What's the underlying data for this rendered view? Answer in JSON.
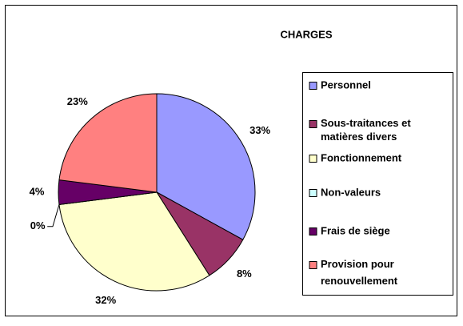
{
  "chart_data": {
    "type": "pie",
    "title": "CHARGES",
    "categories": [
      "Personnel",
      "Sous-traitances et matières divers",
      "Fonctionnement",
      "Non-valeurs",
      "Frais de siège",
      "Provision pour renouvellement"
    ],
    "values": [
      33,
      8,
      32,
      0,
      4,
      23
    ],
    "value_labels": [
      "33%",
      "8%",
      "32%",
      "0%",
      "4%",
      "23%"
    ],
    "colors": [
      "#9999ff",
      "#993366",
      "#ffffcc",
      "#ccffff",
      "#660066",
      "#ff8080"
    ],
    "legend": "right"
  }
}
